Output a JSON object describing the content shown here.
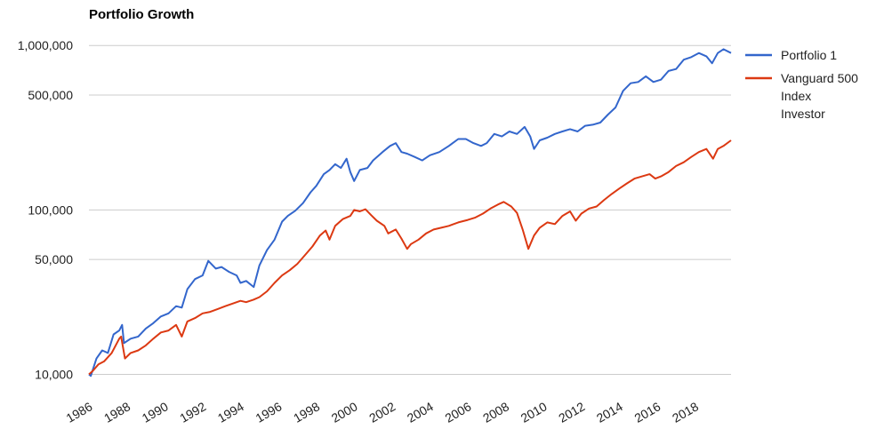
{
  "chart_data": {
    "type": "line",
    "title": "Portfolio Growth",
    "xlabel": "",
    "ylabel": "",
    "y_scale": "log",
    "ylim": [
      9000,
      1150000
    ],
    "xlim": [
      1986.0,
      2019.9
    ],
    "grid": true,
    "legend_position": "right",
    "y_ticks": [
      {
        "value": 10000,
        "label": "10,000"
      },
      {
        "value": 50000,
        "label": "50,000"
      },
      {
        "value": 100000,
        "label": "100,000"
      },
      {
        "value": 500000,
        "label": "500,000"
      },
      {
        "value": 1000000,
        "label": "1,000,000"
      }
    ],
    "x_ticks": [
      "1986",
      "1988",
      "1990",
      "1992",
      "1994",
      "1996",
      "1998",
      "2000",
      "2002",
      "2004",
      "2006",
      "2008",
      "2010",
      "2012",
      "2014",
      "2016",
      "2018"
    ],
    "series": [
      {
        "name": "Portfolio 1",
        "color": "#3366cc",
        "points": [
          [
            1986.0,
            10000
          ],
          [
            1986.1,
            9800
          ],
          [
            1986.4,
            12500
          ],
          [
            1986.7,
            14000
          ],
          [
            1987.0,
            13500
          ],
          [
            1987.3,
            17500
          ],
          [
            1987.6,
            18500
          ],
          [
            1987.75,
            20000
          ],
          [
            1987.85,
            15500
          ],
          [
            1988.2,
            16500
          ],
          [
            1988.6,
            17000
          ],
          [
            1989.0,
            19000
          ],
          [
            1989.4,
            20500
          ],
          [
            1989.8,
            22500
          ],
          [
            1990.2,
            23500
          ],
          [
            1990.6,
            26000
          ],
          [
            1990.9,
            25500
          ],
          [
            1991.2,
            33000
          ],
          [
            1991.6,
            38000
          ],
          [
            1992.0,
            40000
          ],
          [
            1992.3,
            49000
          ],
          [
            1992.7,
            44000
          ],
          [
            1993.0,
            45000
          ],
          [
            1993.4,
            42000
          ],
          [
            1993.8,
            40000
          ],
          [
            1994.0,
            36000
          ],
          [
            1994.3,
            37000
          ],
          [
            1994.7,
            34000
          ],
          [
            1995.0,
            46000
          ],
          [
            1995.4,
            57000
          ],
          [
            1995.8,
            66000
          ],
          [
            1996.2,
            85000
          ],
          [
            1996.5,
            92000
          ],
          [
            1996.9,
            99000
          ],
          [
            1997.3,
            110000
          ],
          [
            1997.7,
            128000
          ],
          [
            1998.0,
            140000
          ],
          [
            1998.4,
            165000
          ],
          [
            1998.7,
            175000
          ],
          [
            1999.0,
            190000
          ],
          [
            1999.3,
            180000
          ],
          [
            1999.6,
            205000
          ],
          [
            1999.8,
            170000
          ],
          [
            2000.0,
            150000
          ],
          [
            2000.3,
            175000
          ],
          [
            2000.7,
            180000
          ],
          [
            2001.0,
            200000
          ],
          [
            2001.5,
            225000
          ],
          [
            2001.9,
            245000
          ],
          [
            2002.2,
            255000
          ],
          [
            2002.5,
            225000
          ],
          [
            2002.8,
            220000
          ],
          [
            2003.2,
            210000
          ],
          [
            2003.6,
            200000
          ],
          [
            2004.0,
            215000
          ],
          [
            2004.5,
            225000
          ],
          [
            2005.0,
            245000
          ],
          [
            2005.5,
            270000
          ],
          [
            2005.9,
            270000
          ],
          [
            2006.3,
            255000
          ],
          [
            2006.7,
            245000
          ],
          [
            2007.0,
            255000
          ],
          [
            2007.4,
            290000
          ],
          [
            2007.8,
            280000
          ],
          [
            2008.2,
            300000
          ],
          [
            2008.6,
            290000
          ],
          [
            2009.0,
            320000
          ],
          [
            2009.3,
            280000
          ],
          [
            2009.5,
            235000
          ],
          [
            2009.8,
            265000
          ],
          [
            2010.2,
            275000
          ],
          [
            2010.6,
            290000
          ],
          [
            2011.0,
            300000
          ],
          [
            2011.4,
            310000
          ],
          [
            2011.8,
            300000
          ],
          [
            2012.2,
            325000
          ],
          [
            2012.6,
            330000
          ],
          [
            2013.0,
            340000
          ],
          [
            2013.4,
            380000
          ],
          [
            2013.8,
            420000
          ],
          [
            2014.2,
            530000
          ],
          [
            2014.6,
            590000
          ],
          [
            2015.0,
            600000
          ],
          [
            2015.4,
            650000
          ],
          [
            2015.8,
            600000
          ],
          [
            2016.2,
            620000
          ],
          [
            2016.6,
            700000
          ],
          [
            2017.0,
            720000
          ],
          [
            2017.4,
            820000
          ],
          [
            2017.8,
            850000
          ],
          [
            2018.2,
            900000
          ],
          [
            2018.6,
            860000
          ],
          [
            2018.9,
            780000
          ],
          [
            2019.2,
            900000
          ],
          [
            2019.5,
            950000
          ],
          [
            2019.9,
            900000
          ]
        ]
      },
      {
        "name": "Vanguard 500 Index Investor",
        "color": "#dc3912",
        "points": [
          [
            1986.0,
            10000
          ],
          [
            1986.2,
            10500
          ],
          [
            1986.5,
            11500
          ],
          [
            1986.8,
            12000
          ],
          [
            1987.2,
            13500
          ],
          [
            1987.6,
            16500
          ],
          [
            1987.7,
            17000
          ],
          [
            1987.9,
            12500
          ],
          [
            1988.2,
            13500
          ],
          [
            1988.6,
            14000
          ],
          [
            1989.0,
            15000
          ],
          [
            1989.4,
            16500
          ],
          [
            1989.8,
            18000
          ],
          [
            1990.2,
            18500
          ],
          [
            1990.6,
            20000
          ],
          [
            1990.9,
            17000
          ],
          [
            1991.2,
            21000
          ],
          [
            1991.6,
            22000
          ],
          [
            1992.0,
            23500
          ],
          [
            1992.4,
            24000
          ],
          [
            1992.8,
            25000
          ],
          [
            1993.2,
            26000
          ],
          [
            1993.6,
            27000
          ],
          [
            1994.0,
            28000
          ],
          [
            1994.3,
            27500
          ],
          [
            1994.7,
            28500
          ],
          [
            1995.0,
            29500
          ],
          [
            1995.4,
            32000
          ],
          [
            1995.8,
            36000
          ],
          [
            1996.2,
            40000
          ],
          [
            1996.6,
            43000
          ],
          [
            1997.0,
            47000
          ],
          [
            1997.4,
            53000
          ],
          [
            1997.8,
            60000
          ],
          [
            1998.2,
            70000
          ],
          [
            1998.5,
            75000
          ],
          [
            1998.7,
            66000
          ],
          [
            1999.0,
            80000
          ],
          [
            1999.4,
            88000
          ],
          [
            1999.8,
            92000
          ],
          [
            2000.0,
            100000
          ],
          [
            2000.3,
            98000
          ],
          [
            2000.6,
            101000
          ],
          [
            2000.9,
            93000
          ],
          [
            2001.2,
            86000
          ],
          [
            2001.6,
            80000
          ],
          [
            2001.8,
            72000
          ],
          [
            2002.2,
            76000
          ],
          [
            2002.5,
            67000
          ],
          [
            2002.8,
            58000
          ],
          [
            2003.0,
            62000
          ],
          [
            2003.4,
            66000
          ],
          [
            2003.8,
            72000
          ],
          [
            2004.2,
            76000
          ],
          [
            2004.6,
            78000
          ],
          [
            2005.0,
            80000
          ],
          [
            2005.5,
            84000
          ],
          [
            2006.0,
            87000
          ],
          [
            2006.4,
            90000
          ],
          [
            2006.8,
            95000
          ],
          [
            2007.2,
            102000
          ],
          [
            2007.6,
            108000
          ],
          [
            2007.9,
            112000
          ],
          [
            2008.3,
            105000
          ],
          [
            2008.6,
            96000
          ],
          [
            2008.9,
            76000
          ],
          [
            2009.2,
            58000
          ],
          [
            2009.5,
            70000
          ],
          [
            2009.8,
            78000
          ],
          [
            2010.2,
            84000
          ],
          [
            2010.6,
            82000
          ],
          [
            2011.0,
            92000
          ],
          [
            2011.4,
            98000
          ],
          [
            2011.7,
            86000
          ],
          [
            2012.0,
            95000
          ],
          [
            2012.4,
            102000
          ],
          [
            2012.8,
            105000
          ],
          [
            2013.2,
            115000
          ],
          [
            2013.6,
            125000
          ],
          [
            2014.0,
            135000
          ],
          [
            2014.4,
            145000
          ],
          [
            2014.8,
            155000
          ],
          [
            2015.2,
            160000
          ],
          [
            2015.6,
            165000
          ],
          [
            2015.9,
            155000
          ],
          [
            2016.2,
            160000
          ],
          [
            2016.6,
            170000
          ],
          [
            2017.0,
            185000
          ],
          [
            2017.4,
            195000
          ],
          [
            2017.8,
            210000
          ],
          [
            2018.2,
            225000
          ],
          [
            2018.6,
            235000
          ],
          [
            2018.95,
            205000
          ],
          [
            2019.2,
            235000
          ],
          [
            2019.5,
            245000
          ],
          [
            2019.9,
            265000
          ]
        ]
      }
    ]
  }
}
